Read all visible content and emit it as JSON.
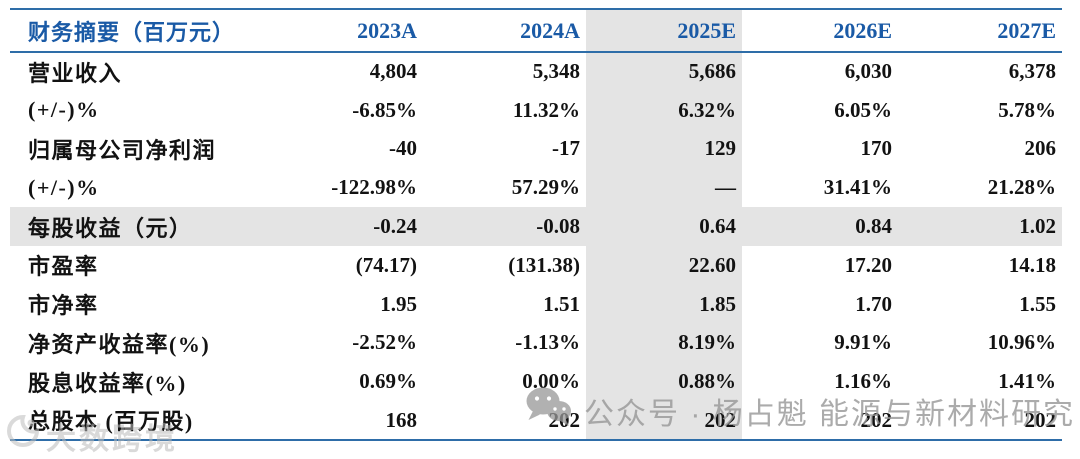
{
  "chart_data": {
    "type": "table",
    "title": "财务摘要（百万元）",
    "categories": [
      "2023A",
      "2024A",
      "2025E",
      "2026E",
      "2027E"
    ],
    "highlight_column": "2025E",
    "rows": [
      {
        "label": "营业收入",
        "values": [
          "4,804",
          "5,348",
          "5,686",
          "6,030",
          "6,378"
        ],
        "highlight": false
      },
      {
        "label": "(+/-)%",
        "values": [
          "-6.85%",
          "11.32%",
          "6.32%",
          "6.05%",
          "5.78%"
        ],
        "highlight": false
      },
      {
        "label": "归属母公司净利润",
        "values": [
          "-40",
          "-17",
          "129",
          "170",
          "206"
        ],
        "highlight": false
      },
      {
        "label": "(+/-)%",
        "values": [
          "-122.98%",
          "57.29%",
          "—",
          "31.41%",
          "21.28%"
        ],
        "highlight": false
      },
      {
        "label": "每股收益（元）",
        "values": [
          "-0.24",
          "-0.08",
          "0.64",
          "0.84",
          "1.02"
        ],
        "highlight": true
      },
      {
        "label": "市盈率",
        "values": [
          "(74.17)",
          "(131.38)",
          "22.60",
          "17.20",
          "14.18"
        ],
        "highlight": false
      },
      {
        "label": "市净率",
        "values": [
          "1.95",
          "1.51",
          "1.85",
          "1.70",
          "1.55"
        ],
        "highlight": false
      },
      {
        "label": "净资产收益率(%)",
        "values": [
          "-2.52%",
          "-1.13%",
          "8.19%",
          "9.91%",
          "10.96%"
        ],
        "highlight": false
      },
      {
        "label": "股息收益率(%)",
        "values": [
          "0.69%",
          "0.00%",
          "0.88%",
          "1.16%",
          "1.41%"
        ],
        "highlight": false
      },
      {
        "label": "总股本 (百万股)",
        "values": [
          "168",
          "202",
          "202",
          "202",
          "202"
        ],
        "highlight": false
      }
    ]
  },
  "table": {
    "header": {
      "label": "财务摘要（百万元）",
      "years": [
        "2023A",
        "2024A",
        "2025E",
        "2026E",
        "2027E"
      ]
    }
  },
  "watermarks": {
    "wechat_icon": "wechat-icon",
    "wechat_text": "公众号 · 杨占魁 能源与新材料研究",
    "logo_text": "大数跨境"
  },
  "colors": {
    "header_blue": "#1a5aa6",
    "line_blue": "#2e6da8",
    "highlight_bg": "#e4e4e4",
    "watermark_gray": "#a3a3a3"
  }
}
